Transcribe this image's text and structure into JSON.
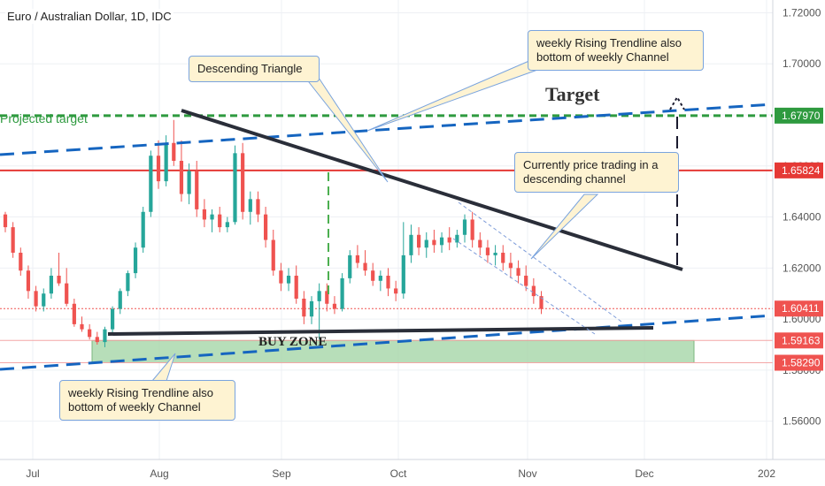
{
  "header": {
    "ticker": "Euro / Australian Dollar, 1D, IDC"
  },
  "annotations": {
    "descending_triangle": "Descending Triangle",
    "weekly_top": "weekly Rising Trendline also bottom of weekly Channel",
    "weekly_bottom": "weekly Rising Trendline also bottom of weekly Channel",
    "currently": "Currently price trading in a descending channel",
    "target": "Target",
    "buy_zone": "BUY ZONE",
    "projected_target": "Projected target"
  },
  "colors": {
    "up": "#26a69a",
    "down": "#ef5350",
    "trendline": "#2a2e39",
    "target_green": "#2e9a3f",
    "resistance_red": "#e53935",
    "rising_blue": "#1565c0",
    "buyzone_fill": "#a5d6a7"
  },
  "chart_data": {
    "type": "candlestick",
    "title": "Euro / Australian Dollar, 1D, IDC",
    "xlabel": "",
    "ylabel": "",
    "x_ticks": [
      "Jul",
      "Aug",
      "Sep",
      "Oct",
      "Nov",
      "Dec",
      "202"
    ],
    "y_ticks": [
      "1.56000",
      "1.58000",
      "1.60000",
      "1.62000",
      "1.64000",
      "1.66000",
      "1.68000",
      "1.70000",
      "1.72000"
    ],
    "ylim": [
      1.545,
      1.725
    ],
    "grid": true,
    "levels": [
      {
        "name": "target",
        "value": 1.6797,
        "label": "1.67970",
        "color": "#2e9a3f"
      },
      {
        "name": "resistance",
        "value": 1.65824,
        "label": "1.65824",
        "color": "#e53935"
      },
      {
        "name": "last-price",
        "value": 1.60411,
        "label": "1.60411",
        "color": "#ef5350"
      },
      {
        "name": "buy-zone-top",
        "value": 1.59163,
        "label": "1.59163",
        "color": "#ef5350"
      },
      {
        "name": "buy-zone-bottom",
        "value": 1.5829,
        "label": "1.58290",
        "color": "#ef5350"
      }
    ],
    "candles": [
      [
        1.641,
        1.642,
        1.634,
        1.636
      ],
      [
        1.636,
        1.638,
        1.624,
        1.626
      ],
      [
        1.626,
        1.628,
        1.617,
        1.619
      ],
      [
        1.619,
        1.621,
        1.608,
        1.611
      ],
      [
        1.611,
        1.613,
        1.603,
        1.605
      ],
      [
        1.605,
        1.612,
        1.603,
        1.61
      ],
      [
        1.61,
        1.62,
        1.608,
        1.617
      ],
      [
        1.617,
        1.626,
        1.613,
        1.614
      ],
      [
        1.614,
        1.62,
        1.605,
        1.606
      ],
      [
        1.606,
        1.608,
        1.597,
        1.598
      ],
      [
        1.598,
        1.601,
        1.595,
        1.596
      ],
      [
        1.596,
        1.598,
        1.592,
        1.593
      ],
      [
        1.593,
        1.595,
        1.59,
        1.591
      ],
      [
        1.591,
        1.597,
        1.589,
        1.596
      ],
      [
        1.596,
        1.605,
        1.594,
        1.604
      ],
      [
        1.604,
        1.612,
        1.602,
        1.611
      ],
      [
        1.611,
        1.619,
        1.609,
        1.618
      ],
      [
        1.618,
        1.63,
        1.616,
        1.628
      ],
      [
        1.628,
        1.644,
        1.626,
        1.642
      ],
      [
        1.642,
        1.666,
        1.64,
        1.664
      ],
      [
        1.664,
        1.67,
        1.651,
        1.654
      ],
      [
        1.654,
        1.672,
        1.652,
        1.669
      ],
      [
        1.669,
        1.678,
        1.66,
        1.662
      ],
      [
        1.662,
        1.67,
        1.646,
        1.649
      ],
      [
        1.649,
        1.661,
        1.645,
        1.658
      ],
      [
        1.658,
        1.662,
        1.64,
        1.643
      ],
      [
        1.643,
        1.647,
        1.636,
        1.639
      ],
      [
        1.639,
        1.643,
        1.634,
        1.641
      ],
      [
        1.641,
        1.644,
        1.634,
        1.636
      ],
      [
        1.636,
        1.64,
        1.634,
        1.638
      ],
      [
        1.638,
        1.668,
        1.637,
        1.665
      ],
      [
        1.665,
        1.669,
        1.639,
        1.642
      ],
      [
        1.642,
        1.65,
        1.637,
        1.647
      ],
      [
        1.647,
        1.65,
        1.638,
        1.641
      ],
      [
        1.641,
        1.644,
        1.628,
        1.631
      ],
      [
        1.631,
        1.635,
        1.617,
        1.619
      ],
      [
        1.619,
        1.622,
        1.611,
        1.614
      ],
      [
        1.614,
        1.62,
        1.611,
        1.617
      ],
      [
        1.617,
        1.621,
        1.606,
        1.608
      ],
      [
        1.608,
        1.611,
        1.598,
        1.601
      ],
      [
        1.601,
        1.609,
        1.598,
        1.607
      ],
      [
        1.607,
        1.614,
        1.592,
        1.611
      ],
      [
        1.611,
        1.614,
        1.603,
        1.606
      ],
      [
        1.606,
        1.609,
        1.602,
        1.604
      ],
      [
        1.604,
        1.618,
        1.603,
        1.616
      ],
      [
        1.616,
        1.627,
        1.614,
        1.625
      ],
      [
        1.625,
        1.629,
        1.62,
        1.622
      ],
      [
        1.622,
        1.627,
        1.617,
        1.619
      ],
      [
        1.619,
        1.622,
        1.613,
        1.615
      ],
      [
        1.615,
        1.619,
        1.611,
        1.617
      ],
      [
        1.617,
        1.62,
        1.609,
        1.612
      ],
      [
        1.612,
        1.615,
        1.607,
        1.61
      ],
      [
        1.61,
        1.638,
        1.608,
        1.625
      ],
      [
        1.625,
        1.637,
        1.622,
        1.633
      ],
      [
        1.633,
        1.636,
        1.625,
        1.628
      ],
      [
        1.628,
        1.634,
        1.624,
        1.631
      ],
      [
        1.631,
        1.635,
        1.626,
        1.629
      ],
      [
        1.629,
        1.634,
        1.626,
        1.632
      ],
      [
        1.632,
        1.636,
        1.627,
        1.63
      ],
      [
        1.63,
        1.635,
        1.628,
        1.633
      ],
      [
        1.633,
        1.641,
        1.63,
        1.639
      ],
      [
        1.639,
        1.642,
        1.628,
        1.631
      ],
      [
        1.631,
        1.634,
        1.625,
        1.628
      ],
      [
        1.628,
        1.631,
        1.622,
        1.625
      ],
      [
        1.625,
        1.629,
        1.621,
        1.626
      ],
      [
        1.626,
        1.629,
        1.619,
        1.622
      ],
      [
        1.622,
        1.626,
        1.616,
        1.62
      ],
      [
        1.62,
        1.623,
        1.614,
        1.617
      ],
      [
        1.617,
        1.621,
        1.611,
        1.613
      ],
      [
        1.613,
        1.616,
        1.606,
        1.609
      ],
      [
        1.609,
        1.611,
        1.602,
        1.604
      ]
    ]
  }
}
